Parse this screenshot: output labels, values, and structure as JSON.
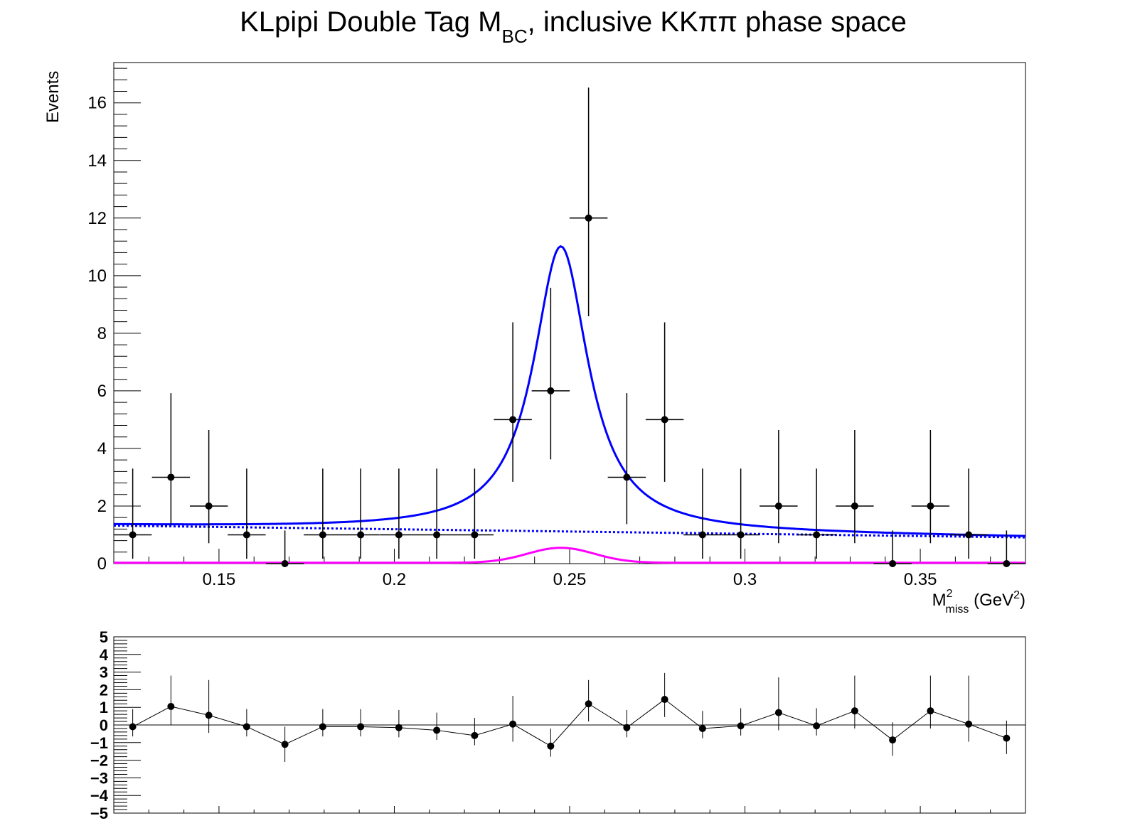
{
  "title": {
    "prefix": "KLpipi Double Tag M",
    "subscript": "BC",
    "suffix": ", inclusive KKππ phase space"
  },
  "colors": {
    "data": "#000000",
    "total_fit": "#0000ff",
    "background": "#0000ff",
    "signal": "#ff00ff"
  },
  "chart_data": [
    {
      "type": "scatter",
      "panel": "main",
      "xlabel": {
        "base": "M",
        "superscript": "2",
        "subscript": "miss",
        "unit_prefix": " (GeV",
        "unit_sup": "2",
        "unit_suffix": ")"
      },
      "ylabel": "Events",
      "xlim": [
        0.12,
        0.38
      ],
      "ylim": [
        0,
        17.4
      ],
      "x_ticks": [
        0.15,
        0.2,
        0.25,
        0.3,
        0.35
      ],
      "x_tick_labels": [
        "0.15",
        "0.2",
        "0.25",
        "0.3",
        "0.35"
      ],
      "y_ticks": [
        0,
        2,
        4,
        6,
        8,
        10,
        12,
        14,
        16
      ],
      "y_tick_labels": [
        "0",
        "2",
        "4",
        "6",
        "8",
        "10",
        "12",
        "14",
        "16"
      ],
      "bin_half_width": 0.00542,
      "points": {
        "x": [
          0.1254,
          0.1363,
          0.1471,
          0.1579,
          0.1688,
          0.1796,
          0.1904,
          0.2013,
          0.2121,
          0.2229,
          0.2338,
          0.2446,
          0.2554,
          0.2663,
          0.2771,
          0.2879,
          0.2988,
          0.3096,
          0.3204,
          0.3313,
          0.3421,
          0.3529,
          0.3638,
          0.3746
        ],
        "y": [
          1,
          3,
          2,
          1,
          0,
          1,
          1,
          1,
          1,
          1,
          5,
          6,
          12,
          3,
          5,
          1,
          1,
          2,
          1,
          2,
          0,
          2,
          1,
          0
        ],
        "err_low": [
          0.83,
          1.63,
          1.29,
          0.83,
          0,
          0.83,
          0.83,
          0.83,
          0.83,
          0.83,
          2.16,
          2.38,
          3.41,
          1.63,
          2.16,
          0.83,
          0.83,
          1.29,
          0.83,
          1.29,
          0,
          1.29,
          0.83,
          0
        ],
        "err_high": [
          2.3,
          2.92,
          2.64,
          2.3,
          1.15,
          2.3,
          2.3,
          2.3,
          2.3,
          2.3,
          3.38,
          3.58,
          4.53,
          2.92,
          3.38,
          2.3,
          2.3,
          2.64,
          2.3,
          2.64,
          1.15,
          2.64,
          2.3,
          1.15
        ]
      },
      "fit_model": {
        "peak_mean": 0.2475,
        "peak_width": 0.0095,
        "peak_amplitude_total": 9.9,
        "peak_amplitude_signal": 0.52,
        "bkg_at_xmin": 1.32,
        "bkg_at_xmax": 0.91
      },
      "series": [
        {
          "name": "",
          "style": "solid",
          "color": "#0000ff",
          "role": "total"
        },
        {
          "name": "",
          "style": "dotted",
          "color": "#0000ff",
          "role": "background"
        },
        {
          "name": "",
          "style": "solid",
          "color": "#ff00ff",
          "role": "signal"
        }
      ]
    },
    {
      "type": "line",
      "panel": "ratio",
      "xlim": [
        0.12,
        0.38
      ],
      "ylim": [
        -5,
        5
      ],
      "y_ticks": [
        5,
        4,
        3,
        2,
        1,
        0,
        -1,
        -2,
        -3,
        -4,
        -5
      ],
      "y_tick_labels": [
        "5",
        "4",
        "3",
        "2",
        "1",
        "0",
        "−1",
        "−2",
        "−3",
        "−4",
        "−5"
      ],
      "points": {
        "x": [
          0.1254,
          0.1363,
          0.1471,
          0.1579,
          0.1688,
          0.1796,
          0.1904,
          0.2013,
          0.2121,
          0.2229,
          0.2338,
          0.2446,
          0.2554,
          0.2663,
          0.2771,
          0.2879,
          0.2988,
          0.3096,
          0.3204,
          0.3313,
          0.3421,
          0.3529,
          0.3638,
          0.3746
        ],
        "y": [
          -0.1,
          1.05,
          0.55,
          -0.1,
          -1.1,
          -0.1,
          -0.1,
          -0.15,
          -0.3,
          -0.6,
          0.05,
          -1.2,
          1.2,
          -0.15,
          1.45,
          -0.2,
          -0.05,
          0.7,
          -0.05,
          0.8,
          -0.85,
          0.8,
          0.05,
          -0.75
        ],
        "err_low": [
          0.55,
          1.05,
          1.0,
          0.55,
          1.0,
          0.55,
          0.55,
          0.55,
          0.55,
          0.55,
          1.0,
          0.6,
          1.0,
          0.55,
          1.0,
          0.55,
          0.55,
          1.0,
          0.55,
          1.0,
          0.9,
          1.0,
          1.0,
          0.9
        ],
        "err_high": [
          1.0,
          1.75,
          2.0,
          1.0,
          1.0,
          1.0,
          1.0,
          1.0,
          1.0,
          1.0,
          1.6,
          1.0,
          1.35,
          1.0,
          1.5,
          1.0,
          1.0,
          2.0,
          1.0,
          2.0,
          1.0,
          2.0,
          2.75,
          1.0
        ]
      }
    }
  ]
}
